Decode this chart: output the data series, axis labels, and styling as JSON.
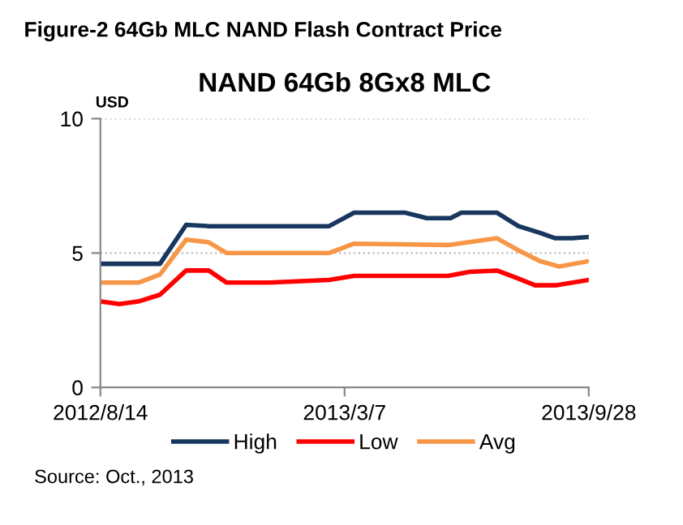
{
  "chart_data": {
    "type": "line",
    "title": "NAND 64Gb 8Gx8 MLC",
    "subtitle": "Figure-2 64Gb MLC NAND Flash Contract Price",
    "ylabel": "USD",
    "annotations": [
      "Source: Oct., 2013"
    ],
    "xlim": [
      "2012-08-14",
      "2013-09-28"
    ],
    "xticks": [
      {
        "value": "2012-08-14",
        "label": "2012/8/14"
      },
      {
        "value": "2013-03-07",
        "label": "2013/3/7"
      },
      {
        "value": "2013-09-28",
        "label": "2013/9/28"
      }
    ],
    "ylim": [
      0,
      10
    ],
    "yticks": [
      0,
      5,
      10
    ],
    "grid": "y",
    "legend": "bottom",
    "marker": "none",
    "line_style": "solid",
    "series": [
      {
        "name": "High",
        "color": "#17375e",
        "x": [
          "2012-08-14",
          "2012-10-03",
          "2012-10-25",
          "2012-11-13",
          "2013-02-22",
          "2013-03-15",
          "2013-04-27",
          "2013-05-15",
          "2013-06-04",
          "2013-06-13",
          "2013-07-13",
          "2013-07-31",
          "2013-08-18",
          "2013-08-31",
          "2013-09-14",
          "2013-09-28"
        ],
        "values": [
          4.6,
          4.6,
          6.05,
          6.0,
          6.0,
          6.5,
          6.5,
          6.3,
          6.3,
          6.5,
          6.5,
          6.0,
          5.75,
          5.55,
          5.55,
          5.6
        ]
      },
      {
        "name": "Low",
        "color": "#ff0000",
        "x": [
          "2012-08-14",
          "2012-08-30",
          "2012-09-15",
          "2012-10-03",
          "2012-10-25",
          "2012-11-13",
          "2012-11-28",
          "2013-01-03",
          "2013-02-22",
          "2013-03-15",
          "2013-06-02",
          "2013-06-20",
          "2013-07-13",
          "2013-07-31",
          "2013-08-14",
          "2013-08-31",
          "2013-09-28"
        ],
        "values": [
          3.2,
          3.1,
          3.2,
          3.45,
          4.35,
          4.35,
          3.9,
          3.9,
          4.0,
          4.15,
          4.15,
          4.3,
          4.35,
          4.05,
          3.8,
          3.8,
          4.0
        ]
      },
      {
        "name": "Avg",
        "color": "#f79646",
        "x": [
          "2012-08-14",
          "2012-09-15",
          "2012-10-03",
          "2012-10-25",
          "2012-11-13",
          "2012-11-28",
          "2013-02-22",
          "2013-03-15",
          "2013-06-02",
          "2013-07-13",
          "2013-07-31",
          "2013-08-18",
          "2013-09-03",
          "2013-09-28"
        ],
        "values": [
          3.9,
          3.9,
          4.2,
          5.5,
          5.4,
          5.0,
          5.0,
          5.35,
          5.3,
          5.55,
          5.1,
          4.7,
          4.5,
          4.7
        ]
      }
    ]
  }
}
